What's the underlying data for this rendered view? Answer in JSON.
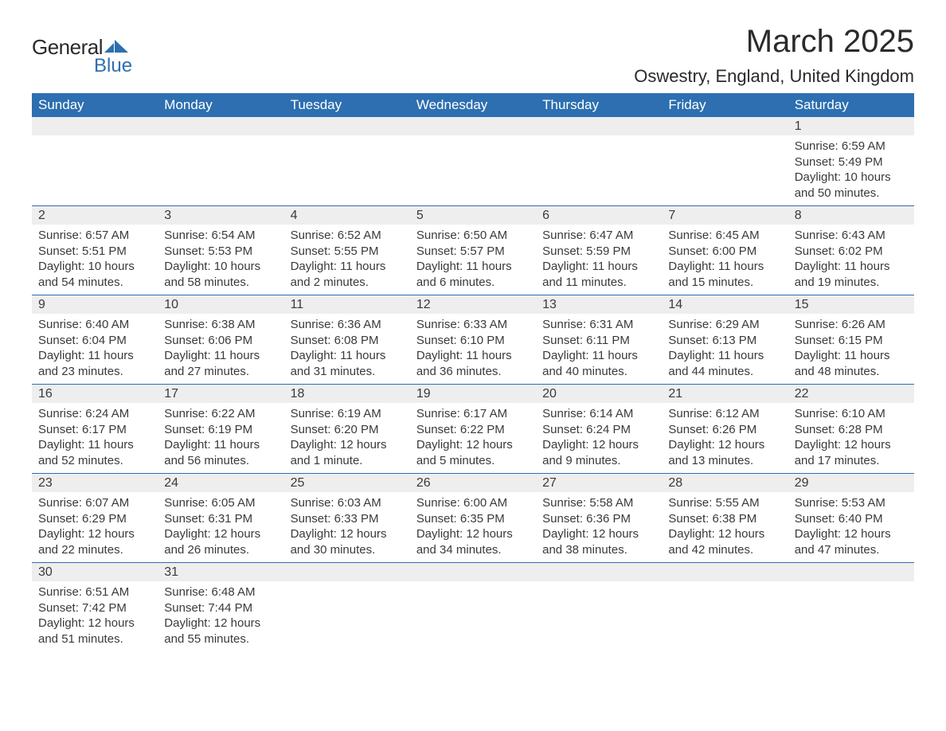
{
  "brand": {
    "general": "General",
    "blue": "Blue"
  },
  "header": {
    "month_title": "March 2025",
    "location": "Oswestry, England, United Kingdom"
  },
  "colors": {
    "header_bg": "#2d6fb0",
    "header_text": "#ffffff",
    "daynum_bg": "#eeeeee",
    "row_border": "#2d6fb0",
    "text": "#3a3a3a",
    "background": "#ffffff"
  },
  "day_labels": [
    "Sunday",
    "Monday",
    "Tuesday",
    "Wednesday",
    "Thursday",
    "Friday",
    "Saturday"
  ],
  "weeks": [
    [
      {
        "blank": true
      },
      {
        "blank": true
      },
      {
        "blank": true
      },
      {
        "blank": true
      },
      {
        "blank": true
      },
      {
        "blank": true
      },
      {
        "day": "1",
        "sunrise": "Sunrise: 6:59 AM",
        "sunset": "Sunset: 5:49 PM",
        "daylight1": "Daylight: 10 hours",
        "daylight2": "and 50 minutes."
      }
    ],
    [
      {
        "day": "2",
        "sunrise": "Sunrise: 6:57 AM",
        "sunset": "Sunset: 5:51 PM",
        "daylight1": "Daylight: 10 hours",
        "daylight2": "and 54 minutes."
      },
      {
        "day": "3",
        "sunrise": "Sunrise: 6:54 AM",
        "sunset": "Sunset: 5:53 PM",
        "daylight1": "Daylight: 10 hours",
        "daylight2": "and 58 minutes."
      },
      {
        "day": "4",
        "sunrise": "Sunrise: 6:52 AM",
        "sunset": "Sunset: 5:55 PM",
        "daylight1": "Daylight: 11 hours",
        "daylight2": "and 2 minutes."
      },
      {
        "day": "5",
        "sunrise": "Sunrise: 6:50 AM",
        "sunset": "Sunset: 5:57 PM",
        "daylight1": "Daylight: 11 hours",
        "daylight2": "and 6 minutes."
      },
      {
        "day": "6",
        "sunrise": "Sunrise: 6:47 AM",
        "sunset": "Sunset: 5:59 PM",
        "daylight1": "Daylight: 11 hours",
        "daylight2": "and 11 minutes."
      },
      {
        "day": "7",
        "sunrise": "Sunrise: 6:45 AM",
        "sunset": "Sunset: 6:00 PM",
        "daylight1": "Daylight: 11 hours",
        "daylight2": "and 15 minutes."
      },
      {
        "day": "8",
        "sunrise": "Sunrise: 6:43 AM",
        "sunset": "Sunset: 6:02 PM",
        "daylight1": "Daylight: 11 hours",
        "daylight2": "and 19 minutes."
      }
    ],
    [
      {
        "day": "9",
        "sunrise": "Sunrise: 6:40 AM",
        "sunset": "Sunset: 6:04 PM",
        "daylight1": "Daylight: 11 hours",
        "daylight2": "and 23 minutes."
      },
      {
        "day": "10",
        "sunrise": "Sunrise: 6:38 AM",
        "sunset": "Sunset: 6:06 PM",
        "daylight1": "Daylight: 11 hours",
        "daylight2": "and 27 minutes."
      },
      {
        "day": "11",
        "sunrise": "Sunrise: 6:36 AM",
        "sunset": "Sunset: 6:08 PM",
        "daylight1": "Daylight: 11 hours",
        "daylight2": "and 31 minutes."
      },
      {
        "day": "12",
        "sunrise": "Sunrise: 6:33 AM",
        "sunset": "Sunset: 6:10 PM",
        "daylight1": "Daylight: 11 hours",
        "daylight2": "and 36 minutes."
      },
      {
        "day": "13",
        "sunrise": "Sunrise: 6:31 AM",
        "sunset": "Sunset: 6:11 PM",
        "daylight1": "Daylight: 11 hours",
        "daylight2": "and 40 minutes."
      },
      {
        "day": "14",
        "sunrise": "Sunrise: 6:29 AM",
        "sunset": "Sunset: 6:13 PM",
        "daylight1": "Daylight: 11 hours",
        "daylight2": "and 44 minutes."
      },
      {
        "day": "15",
        "sunrise": "Sunrise: 6:26 AM",
        "sunset": "Sunset: 6:15 PM",
        "daylight1": "Daylight: 11 hours",
        "daylight2": "and 48 minutes."
      }
    ],
    [
      {
        "day": "16",
        "sunrise": "Sunrise: 6:24 AM",
        "sunset": "Sunset: 6:17 PM",
        "daylight1": "Daylight: 11 hours",
        "daylight2": "and 52 minutes."
      },
      {
        "day": "17",
        "sunrise": "Sunrise: 6:22 AM",
        "sunset": "Sunset: 6:19 PM",
        "daylight1": "Daylight: 11 hours",
        "daylight2": "and 56 minutes."
      },
      {
        "day": "18",
        "sunrise": "Sunrise: 6:19 AM",
        "sunset": "Sunset: 6:20 PM",
        "daylight1": "Daylight: 12 hours",
        "daylight2": "and 1 minute."
      },
      {
        "day": "19",
        "sunrise": "Sunrise: 6:17 AM",
        "sunset": "Sunset: 6:22 PM",
        "daylight1": "Daylight: 12 hours",
        "daylight2": "and 5 minutes."
      },
      {
        "day": "20",
        "sunrise": "Sunrise: 6:14 AM",
        "sunset": "Sunset: 6:24 PM",
        "daylight1": "Daylight: 12 hours",
        "daylight2": "and 9 minutes."
      },
      {
        "day": "21",
        "sunrise": "Sunrise: 6:12 AM",
        "sunset": "Sunset: 6:26 PM",
        "daylight1": "Daylight: 12 hours",
        "daylight2": "and 13 minutes."
      },
      {
        "day": "22",
        "sunrise": "Sunrise: 6:10 AM",
        "sunset": "Sunset: 6:28 PM",
        "daylight1": "Daylight: 12 hours",
        "daylight2": "and 17 minutes."
      }
    ],
    [
      {
        "day": "23",
        "sunrise": "Sunrise: 6:07 AM",
        "sunset": "Sunset: 6:29 PM",
        "daylight1": "Daylight: 12 hours",
        "daylight2": "and 22 minutes."
      },
      {
        "day": "24",
        "sunrise": "Sunrise: 6:05 AM",
        "sunset": "Sunset: 6:31 PM",
        "daylight1": "Daylight: 12 hours",
        "daylight2": "and 26 minutes."
      },
      {
        "day": "25",
        "sunrise": "Sunrise: 6:03 AM",
        "sunset": "Sunset: 6:33 PM",
        "daylight1": "Daylight: 12 hours",
        "daylight2": "and 30 minutes."
      },
      {
        "day": "26",
        "sunrise": "Sunrise: 6:00 AM",
        "sunset": "Sunset: 6:35 PM",
        "daylight1": "Daylight: 12 hours",
        "daylight2": "and 34 minutes."
      },
      {
        "day": "27",
        "sunrise": "Sunrise: 5:58 AM",
        "sunset": "Sunset: 6:36 PM",
        "daylight1": "Daylight: 12 hours",
        "daylight2": "and 38 minutes."
      },
      {
        "day": "28",
        "sunrise": "Sunrise: 5:55 AM",
        "sunset": "Sunset: 6:38 PM",
        "daylight1": "Daylight: 12 hours",
        "daylight2": "and 42 minutes."
      },
      {
        "day": "29",
        "sunrise": "Sunrise: 5:53 AM",
        "sunset": "Sunset: 6:40 PM",
        "daylight1": "Daylight: 12 hours",
        "daylight2": "and 47 minutes."
      }
    ],
    [
      {
        "day": "30",
        "sunrise": "Sunrise: 6:51 AM",
        "sunset": "Sunset: 7:42 PM",
        "daylight1": "Daylight: 12 hours",
        "daylight2": "and 51 minutes."
      },
      {
        "day": "31",
        "sunrise": "Sunrise: 6:48 AM",
        "sunset": "Sunset: 7:44 PM",
        "daylight1": "Daylight: 12 hours",
        "daylight2": "and 55 minutes."
      },
      {
        "blank": true
      },
      {
        "blank": true
      },
      {
        "blank": true
      },
      {
        "blank": true
      },
      {
        "blank": true
      }
    ]
  ]
}
